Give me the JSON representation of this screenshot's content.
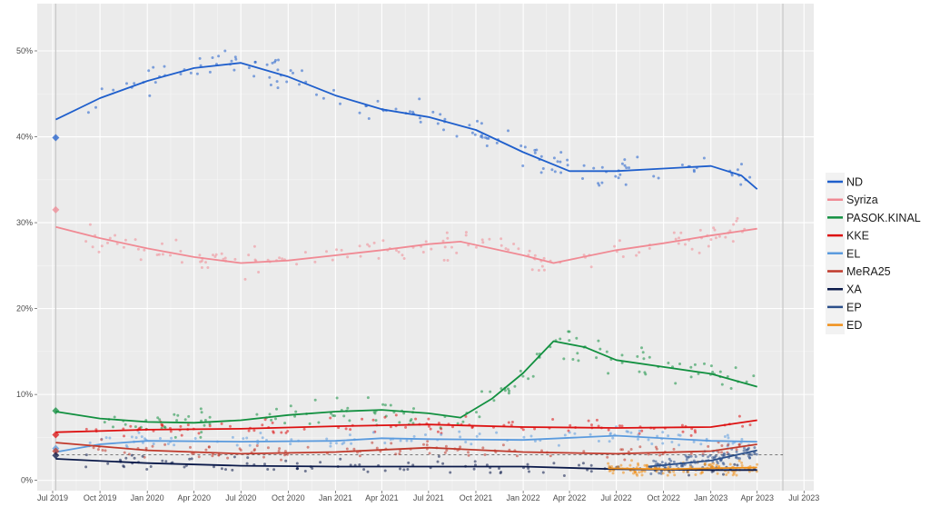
{
  "chart_data": {
    "type": "scatter",
    "title": "",
    "xlabel": "",
    "ylabel": "",
    "xlim": [
      "2019-06-01",
      "2023-07-20"
    ],
    "ylim": [
      -1.2,
      55.5
    ],
    "grid": true,
    "legend_position": "right",
    "y_ticks": [
      0,
      10,
      20,
      30,
      40,
      50
    ],
    "y_tick_labels": [
      "0%",
      "10%",
      "20%",
      "30%",
      "40%",
      "50%"
    ],
    "x_ticks": [
      "2019-07-01",
      "2019-10-01",
      "2020-01-01",
      "2020-04-01",
      "2020-07-01",
      "2020-10-01",
      "2021-01-01",
      "2021-04-01",
      "2021-07-01",
      "2021-10-01",
      "2022-01-01",
      "2022-04-01",
      "2022-07-01",
      "2022-10-01",
      "2023-01-01",
      "2023-04-01",
      "2023-07-01"
    ],
    "x_tick_labels": [
      "Jul 2019",
      "Oct 2019",
      "Jan 2020",
      "Apr 2020",
      "Jul 2020",
      "Oct 2020",
      "Jan 2021",
      "Apr 2021",
      "Jul 2021",
      "Oct 2021",
      "Jan 2022",
      "Apr 2022",
      "Jul 2022",
      "Oct 2022",
      "Jan 2023",
      "Apr 2023",
      "Jul 2023"
    ],
    "vertical_lines": [
      "2019-07-07",
      "2023-05-21"
    ],
    "threshold_line": 3,
    "series": [
      {
        "name": "ND",
        "color": "#1f5fcc",
        "election_result": 39.9,
        "start": "2019-07-07",
        "trend": [
          [
            "2019-07-07",
            42
          ],
          [
            "2019-10-01",
            44.5
          ],
          [
            "2020-01-01",
            46.5
          ],
          [
            "2020-04-01",
            48
          ],
          [
            "2020-07-01",
            48.6
          ],
          [
            "2020-10-01",
            47
          ],
          [
            "2021-01-01",
            44.8
          ],
          [
            "2021-04-01",
            43.2
          ],
          [
            "2021-07-01",
            42.3
          ],
          [
            "2021-10-01",
            40.8
          ],
          [
            "2022-01-01",
            38.2
          ],
          [
            "2022-04-01",
            36
          ],
          [
            "2022-07-01",
            36
          ],
          [
            "2022-10-01",
            36.3
          ],
          [
            "2023-01-01",
            36.6
          ],
          [
            "2023-03-01",
            35.5
          ],
          [
            "2023-04-01",
            33.9
          ]
        ]
      },
      {
        "name": "Syriza",
        "color": "#f08a94",
        "election_result": 31.5,
        "start": "2019-07-07",
        "trend": [
          [
            "2019-07-07",
            29.5
          ],
          [
            "2019-10-01",
            28.2
          ],
          [
            "2020-01-01",
            27
          ],
          [
            "2020-04-01",
            26
          ],
          [
            "2020-07-01",
            25.3
          ],
          [
            "2020-10-01",
            25.6
          ],
          [
            "2021-01-01",
            26.2
          ],
          [
            "2021-04-01",
            26.8
          ],
          [
            "2021-07-01",
            27.5
          ],
          [
            "2021-09-01",
            27.8
          ],
          [
            "2022-01-01",
            26.2
          ],
          [
            "2022-03-01",
            25.3
          ],
          [
            "2022-07-01",
            26.8
          ],
          [
            "2022-10-01",
            27.6
          ],
          [
            "2023-01-01",
            28.5
          ],
          [
            "2023-04-01",
            29.3
          ]
        ]
      },
      {
        "name": "PASOK.KINAL",
        "color": "#129040",
        "election_result": 8.1,
        "start": "2019-07-07",
        "trend": [
          [
            "2019-07-07",
            8
          ],
          [
            "2019-10-01",
            7.2
          ],
          [
            "2020-01-01",
            6.8
          ],
          [
            "2020-04-01",
            6.7
          ],
          [
            "2020-07-01",
            7
          ],
          [
            "2020-10-01",
            7.6
          ],
          [
            "2021-01-01",
            8
          ],
          [
            "2021-04-01",
            8.2
          ],
          [
            "2021-07-01",
            7.8
          ],
          [
            "2021-09-01",
            7.3
          ],
          [
            "2021-11-01",
            9.5
          ],
          [
            "2022-01-01",
            12.5
          ],
          [
            "2022-03-01",
            16.2
          ],
          [
            "2022-05-01",
            15.5
          ],
          [
            "2022-07-01",
            14
          ],
          [
            "2022-10-01",
            13.2
          ],
          [
            "2023-01-01",
            12.4
          ],
          [
            "2023-04-01",
            10.9
          ]
        ]
      },
      {
        "name": "KKE",
        "color": "#dd1111",
        "election_result": 5.3,
        "start": "2019-07-07",
        "trend": [
          [
            "2019-07-07",
            5.6
          ],
          [
            "2020-01-01",
            5.9
          ],
          [
            "2020-07-01",
            6
          ],
          [
            "2021-01-01",
            6.3
          ],
          [
            "2021-07-01",
            6.5
          ],
          [
            "2022-01-01",
            6.2
          ],
          [
            "2022-07-01",
            6.1
          ],
          [
            "2023-01-01",
            6.2
          ],
          [
            "2023-04-01",
            7
          ]
        ]
      },
      {
        "name": "EL",
        "color": "#5b9bde",
        "election_result": 3.7,
        "start": "2019-07-07",
        "trend": [
          [
            "2019-07-07",
            3.3
          ],
          [
            "2019-10-01",
            4.2
          ],
          [
            "2020-01-01",
            4.6
          ],
          [
            "2020-07-01",
            4.5
          ],
          [
            "2021-01-01",
            4.6
          ],
          [
            "2021-04-01",
            4.9
          ],
          [
            "2021-07-01",
            4.8
          ],
          [
            "2022-01-01",
            4.7
          ],
          [
            "2022-07-01",
            5.2
          ],
          [
            "2023-01-01",
            4.6
          ],
          [
            "2023-04-01",
            4.5
          ]
        ]
      },
      {
        "name": "MeRA25",
        "color": "#c0392b",
        "election_result": 3.4,
        "start": "2019-07-07",
        "trend": [
          [
            "2019-07-07",
            4.4
          ],
          [
            "2020-01-01",
            3.5
          ],
          [
            "2020-07-01",
            3.1
          ],
          [
            "2021-01-01",
            3.3
          ],
          [
            "2021-07-01",
            3.8
          ],
          [
            "2022-01-01",
            3.3
          ],
          [
            "2022-07-01",
            3.1
          ],
          [
            "2023-01-01",
            3.4
          ],
          [
            "2023-04-01",
            4.2
          ]
        ]
      },
      {
        "name": "XA",
        "color": "#0b1a4a",
        "election_result": 2.9,
        "start": "2019-07-07",
        "trend": [
          [
            "2019-07-07",
            2.5
          ],
          [
            "2020-01-01",
            2
          ],
          [
            "2020-07-01",
            1.7
          ],
          [
            "2021-01-01",
            1.6
          ],
          [
            "2021-07-01",
            1.6
          ],
          [
            "2022-01-01",
            1.6
          ],
          [
            "2022-07-01",
            1.3
          ],
          [
            "2023-01-01",
            1.2
          ],
          [
            "2023-04-01",
            1.2
          ]
        ]
      },
      {
        "name": "EP",
        "color": "#2b4f8a",
        "start": "2022-09-01",
        "trend": [
          [
            "2022-09-01",
            1.6
          ],
          [
            "2023-01-01",
            2.3
          ],
          [
            "2023-04-01",
            3.5
          ]
        ]
      },
      {
        "name": "ED",
        "color": "#f0901a",
        "start": "2022-06-15",
        "trend": [
          [
            "2022-06-15",
            1.4
          ],
          [
            "2022-10-01",
            1.3
          ],
          [
            "2023-01-01",
            1.4
          ],
          [
            "2023-04-01",
            1.5
          ]
        ]
      }
    ]
  }
}
